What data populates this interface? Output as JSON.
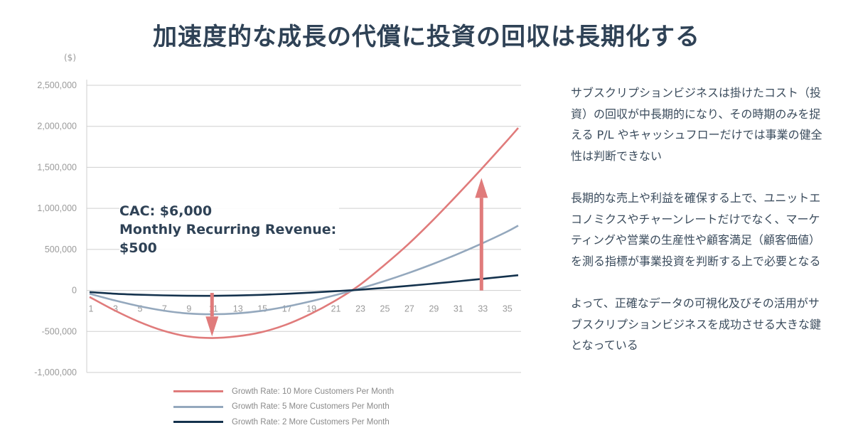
{
  "title": "加速度的な成長の代償に投資の回収は長期化する",
  "unit_label": "($)",
  "annotation": {
    "line1": "CAC: $6,000",
    "line2": "Monthly Recurring Revenue:",
    "line3": "$500"
  },
  "side_text": [
    "サブスクリプションビジネスは掛けたコスト（投資）の回収が中長期的になり、その時期のみを捉える P/L やキャッシュフローだけでは事業の健全性は判断できない",
    "長期的な売上や利益を確保する上で、ユニットエコノミクスやチャーンレートだけでなく、マーケティングや営業の生産性や顧客満足（顧客価値）を測る指標が事業投資を判断する上で必要となる",
    "よって、正確なデータの可視化及びその活用がサブスクリプションビジネスを成功させる大きな鍵となっている"
  ],
  "chart_data": {
    "type": "line",
    "xlim": [
      1,
      36
    ],
    "ylim": [
      -1000000,
      2500000
    ],
    "x_ticks": [
      1,
      3,
      5,
      7,
      9,
      11,
      13,
      15,
      17,
      19,
      21,
      23,
      25,
      27,
      29,
      31,
      33,
      35
    ],
    "y_ticks": [
      2500000,
      2000000,
      1500000,
      1000000,
      500000,
      0,
      -500000,
      -1000000
    ],
    "y_tick_labels": [
      "2,500,000",
      "2,000,000",
      "1,500,000",
      "1,000,000",
      "500,000",
      "0",
      "-500,000",
      "-1,000,000"
    ],
    "grid": true,
    "legend_position": "bottom",
    "series": [
      {
        "name": "Growth Rate: 10 More Customers Per Month",
        "color": "#e07b7b",
        "x": [
          1,
          3,
          5,
          7,
          9,
          11,
          13,
          15,
          17,
          19,
          21,
          23,
          25,
          27,
          29,
          31,
          33,
          35,
          36
        ],
        "values": [
          -80000,
          -240000,
          -380000,
          -490000,
          -560000,
          -580000,
          -560000,
          -510000,
          -420000,
          -290000,
          -130000,
          60000,
          300000,
          560000,
          850000,
          1160000,
          1480000,
          1810000,
          1980000
        ]
      },
      {
        "name": "Growth Rate: 5 More Customers Per Month",
        "color": "#94a8bd",
        "x": [
          1,
          3,
          5,
          7,
          9,
          11,
          13,
          15,
          17,
          19,
          21,
          23,
          25,
          27,
          29,
          31,
          33,
          35,
          36
        ],
        "values": [
          -40000,
          -120000,
          -190000,
          -245000,
          -280000,
          -290000,
          -280000,
          -250000,
          -200000,
          -135000,
          -60000,
          20000,
          110000,
          210000,
          320000,
          440000,
          570000,
          710000,
          790000
        ]
      },
      {
        "name": "Growth Rate: 2 More Customers Per Month",
        "color": "#14324d",
        "x": [
          1,
          3,
          5,
          7,
          9,
          11,
          13,
          15,
          17,
          19,
          21,
          23,
          25,
          27,
          29,
          31,
          33,
          35,
          36
        ],
        "values": [
          -20000,
          -40000,
          -52000,
          -60000,
          -65000,
          -66000,
          -62000,
          -54000,
          -42000,
          -27000,
          -10000,
          8000,
          30000,
          55000,
          82000,
          110000,
          140000,
          170000,
          185000
        ]
      }
    ],
    "arrows": [
      {
        "direction": "down",
        "x": 11,
        "from": -30000,
        "to": -560000,
        "color": "#e07b7b"
      },
      {
        "direction": "up",
        "x": 33,
        "from": 0,
        "to": 1370000,
        "color": "#e07b7b"
      }
    ]
  }
}
